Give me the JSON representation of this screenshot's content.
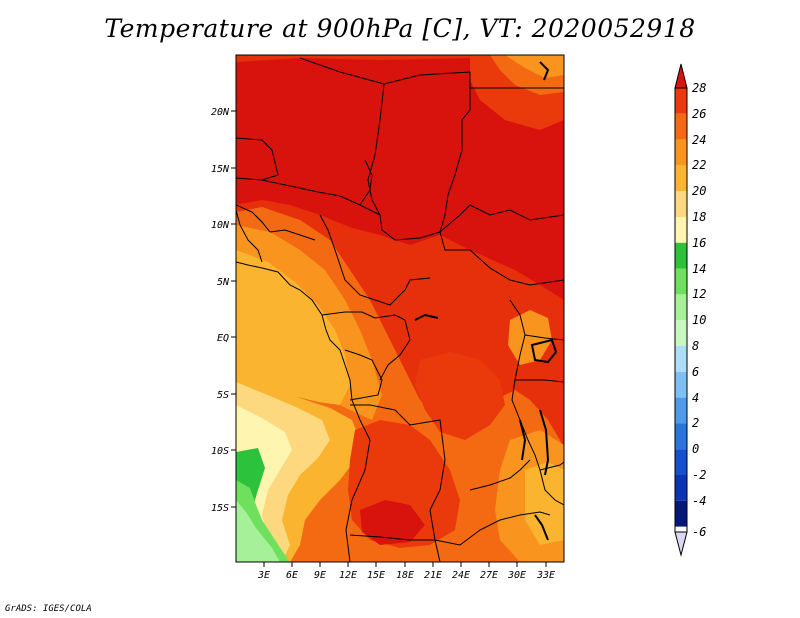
{
  "title": "Temperature at 900hPa [C], VT: 2020052918",
  "credit": "GrADS: IGES/COLA",
  "map": {
    "lat_labels": [
      "20N",
      "15N",
      "10N",
      "5N",
      "EQ",
      "5S",
      "10S",
      "15S"
    ],
    "lon_labels": [
      "3E",
      "6E",
      "9E",
      "12E",
      "15E",
      "18E",
      "21E",
      "24E",
      "27E",
      "30E",
      "33E"
    ]
  },
  "colorbar": {
    "levels": [
      "28",
      "26",
      "24",
      "22",
      "20",
      "18",
      "16",
      "14",
      "12",
      "10",
      "8",
      "6",
      "4",
      "2",
      "0",
      "-2",
      "-4",
      "-6"
    ],
    "colors": {
      "above_28": "#d8130d",
      "26_28": "#ea3a0c",
      "24_26": "#f46a12",
      "22_24": "#f9951e",
      "20_22": "#fbb42f",
      "18_20": "#fdd87e",
      "16_18": "#fef5b0",
      "14_16": "#2dc23b",
      "12_14": "#6fe05e",
      "10_12": "#a6f099",
      "8_10": "#c9f7c2",
      "6_8": "#aeddf7",
      "4_6": "#7fbff3",
      "2_4": "#4f9ae9",
      "0_2": "#2a74de",
      "m2_0": "#1650cf",
      "m4_m2": "#0b35b4",
      "m6_m4": "#06187a",
      "below_m6": "#dcd8f4"
    }
  }
}
